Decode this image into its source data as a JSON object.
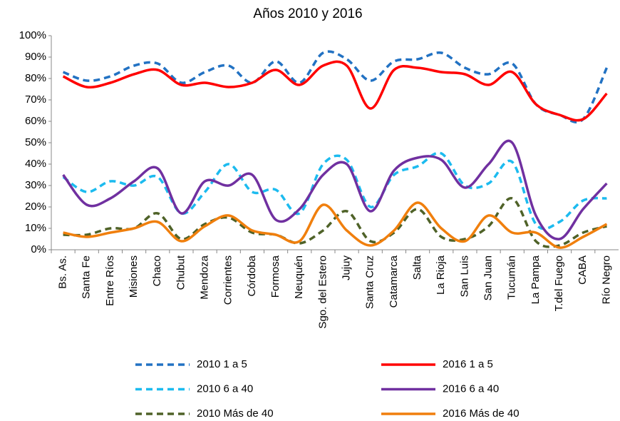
{
  "chart_data": {
    "type": "line",
    "title": "Años 2010 y 2016",
    "categories": [
      "Bs. As.",
      "Santa Fe",
      "Entre Ríos",
      "Misiones",
      "Chaco",
      "Chubut",
      "Mendoza",
      "Corrientes",
      "Córdoba",
      "Formosa",
      "Neuquén",
      "Sgo. del Estero",
      "Jujuy",
      "Santa Cruz",
      "Catamarca",
      "Salta",
      "La Rioja",
      "San Luis",
      "San Juan",
      "Tucumán",
      "La Pampa",
      "T.del Fuego",
      "CABA",
      "Río Negro"
    ],
    "series": [
      {
        "name": "2010 1 a 5",
        "color": "#2272c3",
        "dashed": true,
        "values": [
          83,
          79,
          81,
          86,
          87,
          78,
          83,
          86,
          78,
          88,
          78,
          92,
          89,
          79,
          88,
          89,
          92,
          85,
          82,
          87,
          68,
          63,
          61,
          85
        ]
      },
      {
        "name": "2016 1 a 5",
        "color": "#ff0000",
        "dashed": false,
        "values": [
          81,
          76,
          78,
          82,
          84,
          77,
          78,
          76,
          78,
          84,
          77,
          86,
          86,
          66,
          84,
          85,
          83,
          82,
          77,
          83,
          68,
          63,
          61,
          73
        ]
      },
      {
        "name": "2010 6 a 40",
        "color": "#1cbbef",
        "dashed": true,
        "values": [
          34,
          27,
          32,
          30,
          34,
          17,
          27,
          40,
          27,
          28,
          17,
          40,
          42,
          20,
          35,
          39,
          45,
          30,
          31,
          41,
          12,
          13,
          23,
          24
        ]
      },
      {
        "name": "2016 6 a 40",
        "color": "#7030a0",
        "dashed": false,
        "values": [
          35,
          21,
          24,
          32,
          38,
          17,
          32,
          30,
          35,
          14,
          19,
          35,
          40,
          18,
          37,
          43,
          42,
          29,
          40,
          50,
          16,
          5,
          19,
          31
        ]
      },
      {
        "name": "2010 Más de 40",
        "color": "#4f6228",
        "dashed": true,
        "values": [
          7,
          7,
          10,
          10,
          17,
          5,
          12,
          15,
          8,
          7,
          3,
          9,
          18,
          4,
          8,
          19,
          6,
          5,
          11,
          24,
          4,
          2,
          8,
          11
        ]
      },
      {
        "name": "2016 Más de 40",
        "color": "#f07f0d",
        "dashed": false,
        "values": [
          8,
          6,
          8,
          10,
          13,
          4,
          11,
          16,
          9,
          7,
          4,
          21,
          9,
          2,
          9,
          22,
          10,
          4,
          16,
          8,
          8,
          1,
          6,
          12
        ]
      }
    ],
    "ylim": [
      0,
      100
    ],
    "yticks": [
      {
        "value": 0,
        "label": "0%"
      },
      {
        "value": 10,
        "label": "10%"
      },
      {
        "value": 20,
        "label": "20%"
      },
      {
        "value": 30,
        "label": "30%"
      },
      {
        "value": 40,
        "label": "40%"
      },
      {
        "value": 50,
        "label": "50%"
      },
      {
        "value": 60,
        "label": "60%"
      },
      {
        "value": 70,
        "label": "70%"
      },
      {
        "value": 80,
        "label": "80%"
      },
      {
        "value": 90,
        "label": "90%"
      },
      {
        "value": 100,
        "label": "100%"
      }
    ],
    "grid": false,
    "legend": "bottom"
  }
}
